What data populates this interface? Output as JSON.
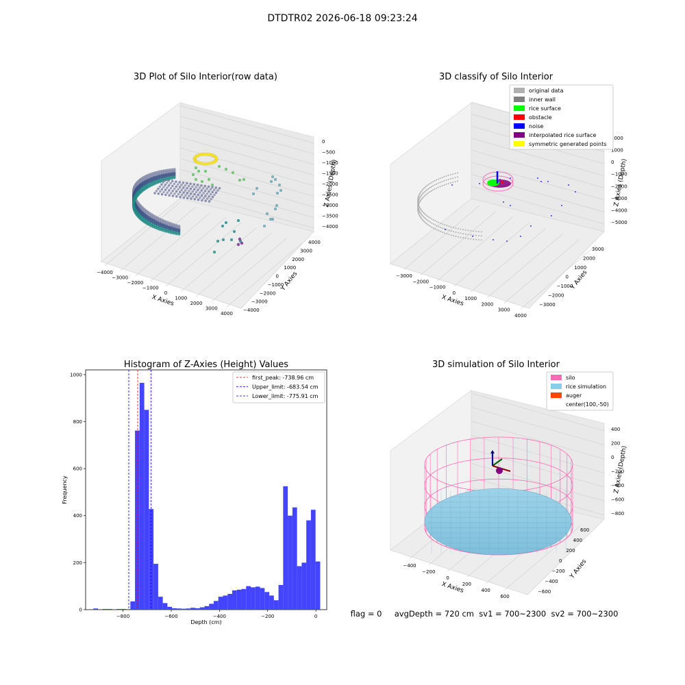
{
  "figure": {
    "suptitle": "DTDTR02 2026-06-18 09:23:24",
    "footer": "flag = 0     avgDepth = 720 cm  sv1 = 700~2300  sv2 = 700~2300"
  },
  "panel1": {
    "title": "3D Plot of Silo Interior(row data)",
    "xlabel": "X Axies",
    "ylabel": "Y Axies",
    "zlabel": "Z Axies (Depth)",
    "xticks": [
      "−4000",
      "−3000",
      "−2000",
      "−1000",
      "0",
      "1000",
      "2000",
      "3000",
      "4000"
    ],
    "yticks": [
      "−4000",
      "−3000",
      "−2000",
      "−1000",
      "0",
      "1000",
      "2000",
      "3000",
      "4000"
    ],
    "zticks": [
      "0",
      "−500",
      "−1000",
      "−1500",
      "−2000",
      "−2500",
      "−3000",
      "−3500",
      "−4000"
    ]
  },
  "panel2": {
    "title": "3D classify of Silo Interior",
    "xlabel": "X Axies",
    "ylabel": "Y Axies",
    "zlabel": "Z Axies (Depth)",
    "xticks": [
      "−3000",
      "−2000",
      "−1000",
      "0",
      "1000",
      "2000",
      "3000",
      "4000"
    ],
    "yticks": [
      "−3000",
      "−2000",
      "−1000",
      "0",
      "1000",
      "2000",
      "3000"
    ],
    "zticks": [
      "2000",
      "1000",
      "0",
      "−1000",
      "−2000",
      "−3000",
      "−4000",
      "−5000"
    ],
    "legend": [
      {
        "label": "original data",
        "color": "#b0b0b0"
      },
      {
        "label": "inner wall",
        "color": "#808080"
      },
      {
        "label": "rice surface",
        "color": "#00ff00"
      },
      {
        "label": "obstacle",
        "color": "#ff0000"
      },
      {
        "label": "noise",
        "color": "#0000ff"
      },
      {
        "label": "interpolated rice surface",
        "color": "#800080"
      },
      {
        "label": "symmetric generated points",
        "color": "#ffff00"
      }
    ]
  },
  "panel4": {
    "title": "3D simulation of Silo Interior",
    "xlabel": "X Axies",
    "ylabel": "Y Axies",
    "zlabel": "Z Axies (Depth)",
    "xticks": [
      "−400",
      "−200",
      "0",
      "200",
      "400",
      "600"
    ],
    "yticks": [
      "−600",
      "−400",
      "−200",
      "0",
      "200",
      "400",
      "600"
    ],
    "zticks": [
      "400",
      "200",
      "0",
      "−200",
      "−400",
      "−600",
      "−800"
    ],
    "legend": [
      {
        "label": "silo",
        "color": "#ff69b4"
      },
      {
        "label": "rice simulation",
        "color": "#87ceeb"
      },
      {
        "label": "auger",
        "color": "#ff4500"
      },
      {
        "label": "center(100,-50)",
        "color": ""
      }
    ]
  },
  "chart_data": {
    "type": "bar",
    "title": "Histogram of Z-Axies (Height) Values",
    "xlabel": "Depth (cm)",
    "ylabel": "Frequency",
    "xlim": [
      -955,
      45
    ],
    "ylim": [
      0,
      1020
    ],
    "xticks": [
      -800,
      -600,
      -400,
      -200,
      0
    ],
    "xtick_labels": [
      "−800",
      "−600",
      "−400",
      "−200",
      "0"
    ],
    "yticks": [
      0,
      200,
      400,
      600,
      800,
      1000
    ],
    "bin_width": 19.2,
    "bin_starts": [
      -923,
      -903.8,
      -884.6,
      -865.4,
      -846.2,
      -827,
      -807.8,
      -788.6,
      -769.4,
      -750.2,
      -731,
      -711.8,
      -692.6,
      -673.4,
      -654.2,
      -635,
      -615.8,
      -596.6,
      -577.4,
      -558.2,
      -539,
      -519.8,
      -500.6,
      -481.4,
      -462.2,
      -443,
      -423.8,
      -404.6,
      -385.4,
      -366.2,
      -347,
      -327.8,
      -308.6,
      -289.4,
      -270.2,
      -251,
      -231.8,
      -212.6,
      -193.4,
      -174.2,
      -155,
      -135.8,
      -116.6,
      -97.4,
      -78.2,
      -59,
      -39.8,
      -20.6,
      -1.4
    ],
    "values": [
      5,
      0,
      3,
      3,
      0,
      3,
      3,
      2,
      35,
      762,
      965,
      850,
      428,
      195,
      55,
      28,
      12,
      6,
      5,
      4,
      5,
      8,
      6,
      10,
      15,
      25,
      37,
      55,
      60,
      67,
      82,
      85,
      88,
      100,
      95,
      98,
      92,
      75,
      60,
      40,
      105,
      525,
      400,
      435,
      185,
      200,
      380,
      425,
      205
    ],
    "peak_lines": [
      {
        "label": "first_peak: -738.96 cm",
        "value": -738.96,
        "color": "#ff0000"
      },
      {
        "label": "Upper_limit: -683.54 cm",
        "value": -683.54,
        "color": "#0000ff"
      },
      {
        "label": "Lower_limit: -775.91 cm",
        "value": -775.91,
        "color": "#0000ff"
      }
    ],
    "bar_color": "#4444ff"
  }
}
